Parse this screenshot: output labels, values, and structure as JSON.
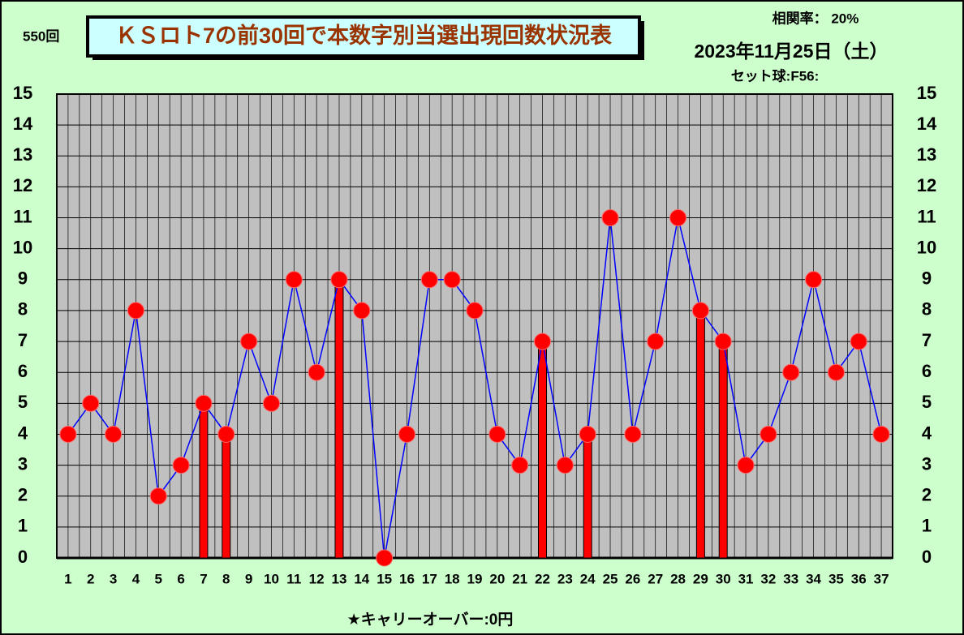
{
  "chart_data": {
    "type": "line",
    "title": "ＫＳロト7の前30回で本数字別当選出現回数状況表",
    "draw_label": "550回",
    "correlation": "相関率： 20%",
    "date": "2023年11月25日（土）",
    "set_ball": "セット球:F56:",
    "carryover": "★キャリーオーバー:0円",
    "categories": [
      "1",
      "2",
      "3",
      "4",
      "5",
      "6",
      "7",
      "8",
      "9",
      "10",
      "11",
      "12",
      "13",
      "14",
      "15",
      "16",
      "17",
      "18",
      "19",
      "20",
      "21",
      "22",
      "23",
      "24",
      "25",
      "26",
      "27",
      "28",
      "29",
      "30",
      "31",
      "32",
      "33",
      "34",
      "35",
      "36",
      "37"
    ],
    "series": [
      {
        "type": "bar",
        "color": "#ff0000",
        "values": [
          null,
          null,
          null,
          null,
          null,
          null,
          5,
          4,
          null,
          null,
          null,
          null,
          9,
          null,
          null,
          null,
          null,
          null,
          null,
          null,
          null,
          7,
          null,
          4,
          null,
          null,
          null,
          null,
          8,
          7,
          null,
          null,
          null,
          null,
          null,
          null,
          null
        ]
      },
      {
        "type": "line",
        "color": "#0000ff",
        "marker_color": "#ff0000",
        "values": [
          4,
          5,
          4,
          8,
          2,
          3,
          5,
          4,
          7,
          5,
          9,
          6,
          9,
          8,
          0,
          4,
          9,
          9,
          8,
          4,
          3,
          7,
          3,
          4,
          11,
          4,
          7,
          11,
          8,
          7,
          3,
          4,
          6,
          9,
          6,
          7,
          4
        ]
      }
    ],
    "ylim": [
      0,
      15
    ],
    "yticks": [
      0,
      1,
      2,
      3,
      4,
      5,
      6,
      7,
      8,
      9,
      10,
      11,
      12,
      13,
      14,
      15
    ],
    "grid": true,
    "background": "#ccffcc",
    "plot_background": "#c0c0c0"
  }
}
